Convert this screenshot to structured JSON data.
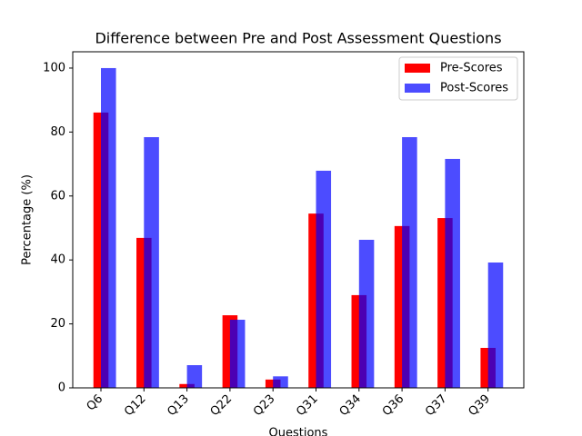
{
  "chart_data": {
    "type": "bar",
    "title": "Difference between Pre and Post Assessment Questions",
    "x_label": "Questions",
    "y_label": "Percentage (%)",
    "categories": [
      "Q6",
      "Q12",
      "Q13",
      "Q22",
      "Q23",
      "Q31",
      "Q34",
      "Q36",
      "Q37",
      "Q39"
    ],
    "series": [
      {
        "name": "Pre-Scores",
        "color": "#ff0000",
        "opacity": 1,
        "values": [
          86.1,
          46.9,
          1.2,
          22.7,
          2.6,
          54.5,
          29,
          50.6,
          53.1,
          12.5
        ]
      },
      {
        "name": "Post-Scores",
        "color": "#0000ff",
        "opacity": 0.7,
        "values": [
          100,
          78.4,
          7.1,
          21.3,
          3.6,
          67.9,
          46.3,
          78.4,
          71.6,
          39.2
        ]
      }
    ],
    "ylim": [
      0,
      105.1
    ],
    "yticks": [
      0,
      20,
      40,
      60,
      80,
      100
    ],
    "legend": "upper right"
  }
}
